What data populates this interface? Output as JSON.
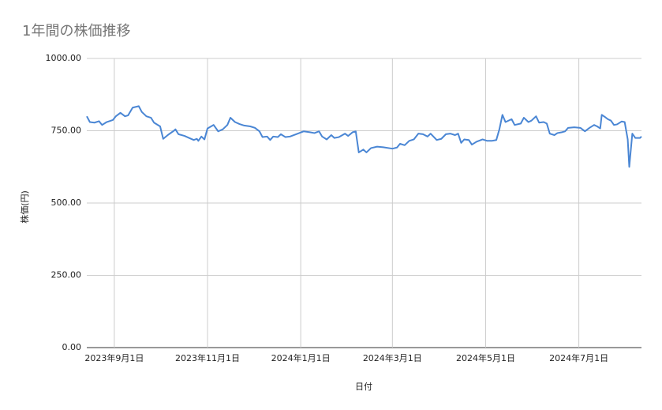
{
  "chart_data": {
    "type": "line",
    "title": "1年間の株価推移",
    "x_label": "日付",
    "y_label": "株価(円)",
    "x": [
      "2023-08-14",
      "2023-08-16",
      "2023-08-19",
      "2023-08-22",
      "2023-08-24",
      "2023-08-27",
      "2023-08-31",
      "2023-09-02",
      "2023-09-05",
      "2023-09-08",
      "2023-09-10",
      "2023-09-13",
      "2023-09-17",
      "2023-09-19",
      "2023-09-22",
      "2023-09-25",
      "2023-09-27",
      "2023-10-01",
      "2023-10-03",
      "2023-10-06",
      "2023-10-10",
      "2023-10-11",
      "2023-10-13",
      "2023-10-17",
      "2023-10-20",
      "2023-10-23",
      "2023-10-25",
      "2023-10-26",
      "2023-10-28",
      "2023-10-30",
      "2023-11-01",
      "2023-11-05",
      "2023-11-08",
      "2023-11-11",
      "2023-11-14",
      "2023-11-16",
      "2023-11-19",
      "2023-11-22",
      "2023-11-25",
      "2023-11-29",
      "2023-12-02",
      "2023-12-05",
      "2023-12-07",
      "2023-12-10",
      "2023-12-12",
      "2023-12-14",
      "2023-12-17",
      "2023-12-19",
      "2023-12-22",
      "2023-12-25",
      "2023-12-30",
      "2024-01-03",
      "2024-01-07",
      "2024-01-10",
      "2024-01-13",
      "2024-01-15",
      "2024-01-18",
      "2024-01-21",
      "2024-01-23",
      "2024-01-26",
      "2024-01-30",
      "2024-02-01",
      "2024-02-04",
      "2024-02-06",
      "2024-02-08",
      "2024-02-11",
      "2024-02-13",
      "2024-02-16",
      "2024-02-20",
      "2024-02-24",
      "2024-03-01",
      "2024-03-04",
      "2024-03-06",
      "2024-03-09",
      "2024-03-12",
      "2024-03-15",
      "2024-03-18",
      "2024-03-21",
      "2024-03-24",
      "2024-03-26",
      "2024-03-30",
      "2024-04-02",
      "2024-04-05",
      "2024-04-08",
      "2024-04-11",
      "2024-04-13",
      "2024-04-15",
      "2024-04-17",
      "2024-04-20",
      "2024-04-22",
      "2024-04-25",
      "2024-04-29",
      "2024-05-02",
      "2024-05-05",
      "2024-05-08",
      "2024-05-10",
      "2024-05-12",
      "2024-05-14",
      "2024-05-18",
      "2024-05-20",
      "2024-05-24",
      "2024-05-26",
      "2024-05-29",
      "2024-05-31",
      "2024-06-03",
      "2024-06-05",
      "2024-06-08",
      "2024-06-10",
      "2024-06-12",
      "2024-06-15",
      "2024-06-17",
      "2024-06-20",
      "2024-06-22",
      "2024-06-24",
      "2024-06-28",
      "2024-07-02",
      "2024-07-05",
      "2024-07-08",
      "2024-07-11",
      "2024-07-13",
      "2024-07-15",
      "2024-07-16",
      "2024-07-18",
      "2024-07-20",
      "2024-07-22",
      "2024-07-24",
      "2024-07-26",
      "2024-07-29",
      "2024-07-31",
      "2024-08-02",
      "2024-08-03",
      "2024-08-05",
      "2024-08-07",
      "2024-08-10",
      "2024-08-11"
    ],
    "series": [
      {
        "name": "株価",
        "color": "#4a86d4",
        "values": [
          800,
          780,
          778,
          783,
          770,
          780,
          787,
          800,
          812,
          800,
          803,
          830,
          835,
          815,
          800,
          795,
          778,
          765,
          722,
          735,
          750,
          755,
          738,
          732,
          725,
          718,
          722,
          715,
          730,
          720,
          758,
          770,
          748,
          755,
          770,
          795,
          780,
          773,
          768,
          765,
          760,
          748,
          728,
          730,
          718,
          730,
          728,
          738,
          728,
          730,
          740,
          748,
          745,
          742,
          748,
          730,
          720,
          735,
          725,
          728,
          740,
          732,
          745,
          748,
          675,
          685,
          675,
          690,
          695,
          693,
          688,
          692,
          705,
          700,
          715,
          720,
          740,
          738,
          730,
          740,
          718,
          722,
          738,
          740,
          735,
          740,
          708,
          720,
          718,
          702,
          712,
          720,
          715,
          715,
          718,
          755,
          805,
          780,
          790,
          770,
          775,
          795,
          780,
          785,
          800,
          778,
          780,
          775,
          740,
          735,
          742,
          745,
          748,
          760,
          762,
          760,
          748,
          760,
          770,
          765,
          758,
          805,
          798,
          790,
          785,
          770,
          772,
          782,
          780,
          720,
          625,
          740,
          725,
          725,
          730
        ]
      }
    ],
    "xlim": [
      "2023-08-14",
      "2024-08-11"
    ],
    "xticks": [
      {
        "value": "2023-09-01",
        "label": "2023年9月1日"
      },
      {
        "value": "2023-11-01",
        "label": "2023年11月1日"
      },
      {
        "value": "2024-01-01",
        "label": "2024年1月1日"
      },
      {
        "value": "2024-03-01",
        "label": "2024年3月1日"
      },
      {
        "value": "2024-05-01",
        "label": "2024年5月1日"
      },
      {
        "value": "2024-07-01",
        "label": "2024年7月1日"
      }
    ],
    "ylim": [
      0,
      1000
    ],
    "yticks": [
      {
        "value": 0,
        "label": "0.00"
      },
      {
        "value": 250,
        "label": "250.00"
      },
      {
        "value": 500,
        "label": "500.00"
      },
      {
        "value": 750,
        "label": "750.00"
      },
      {
        "value": 1000,
        "label": "1000.00"
      }
    ],
    "grid": true
  }
}
